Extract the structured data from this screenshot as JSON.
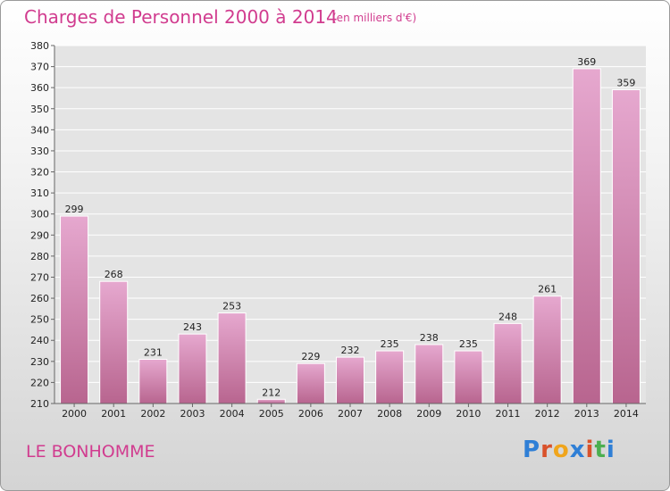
{
  "header": {
    "title": "Charges de Personnel 2000 à 2014",
    "subtitle": "(en milliers d'€)"
  },
  "footer": {
    "location": "LE BONHOMME",
    "logo": "Proxiti",
    "logo_colors": [
      "#2f7fd6",
      "#d9522b",
      "#f0a51c",
      "#2f7fd6",
      "#d9522b",
      "#4caf50",
      "#2f7fd6"
    ]
  },
  "colors": {
    "bar_light": "#e6a8cf",
    "bar_dark": "#b8658f",
    "accent": "#d13c8f",
    "plot_bg": "#e4e4e4",
    "grid": "#ffffff"
  },
  "chart_data": {
    "type": "bar",
    "title": "Charges de Personnel 2000 à 2014",
    "subtitle": "(en milliers d'€)",
    "xlabel": "",
    "ylabel": "",
    "categories": [
      "2000",
      "2001",
      "2002",
      "2003",
      "2004",
      "2005",
      "2006",
      "2007",
      "2008",
      "2009",
      "2010",
      "2011",
      "2012",
      "2013",
      "2014"
    ],
    "values": [
      299,
      268,
      231,
      243,
      253,
      212,
      229,
      232,
      235,
      238,
      235,
      248,
      261,
      369,
      359
    ],
    "ylim": [
      210,
      380
    ],
    "yticks": [
      210,
      220,
      230,
      240,
      250,
      260,
      270,
      280,
      290,
      300,
      310,
      320,
      330,
      340,
      350,
      360,
      370,
      380
    ],
    "grid": true,
    "legend": "none"
  }
}
